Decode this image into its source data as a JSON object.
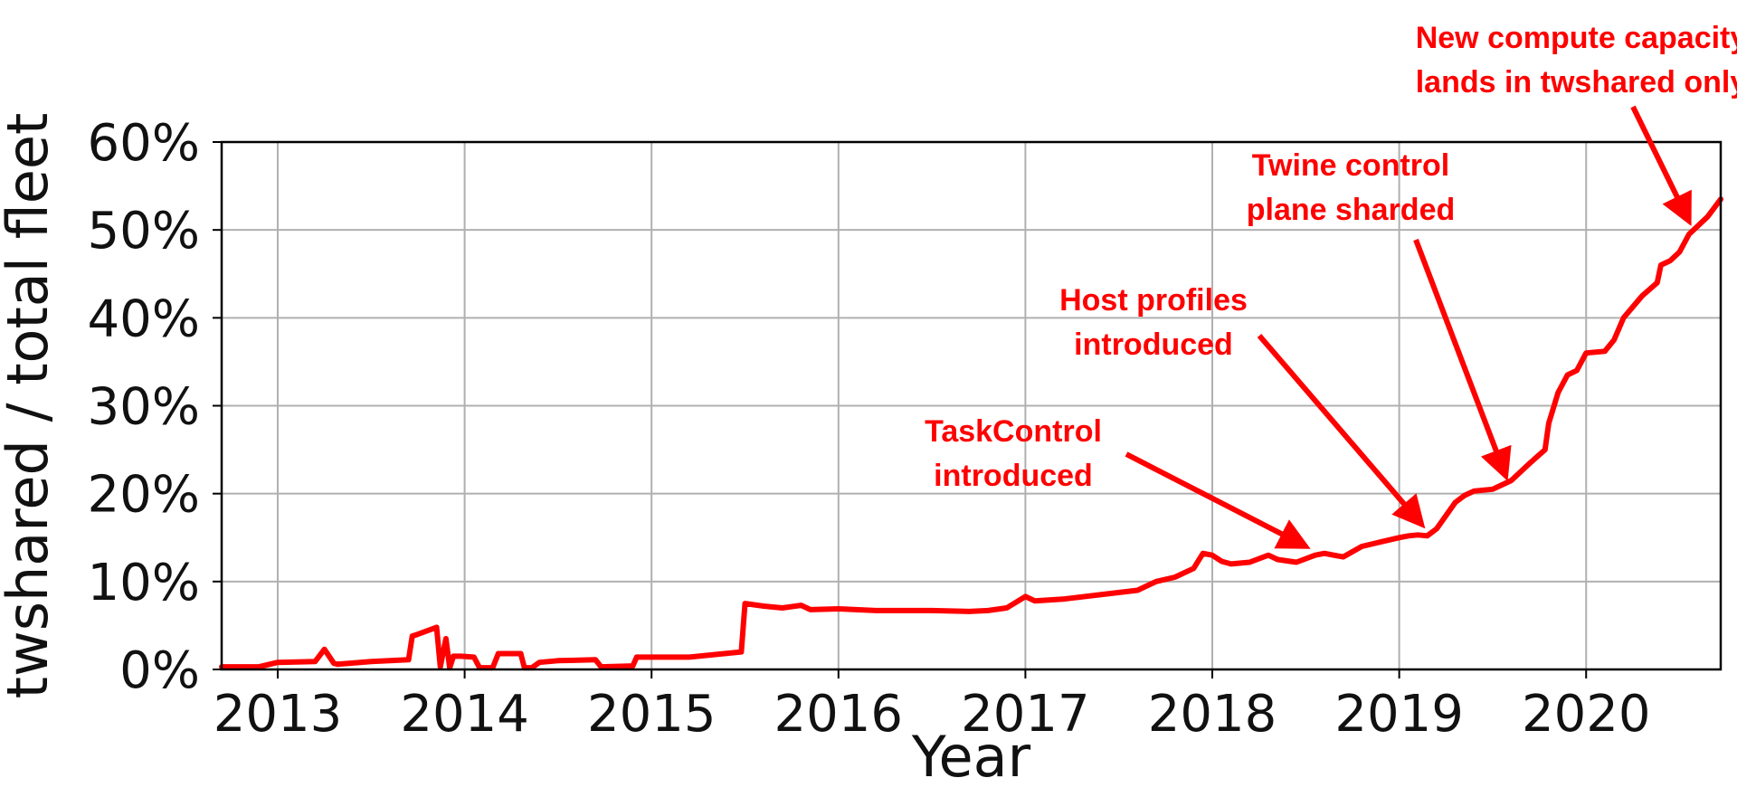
{
  "chart_data": {
    "type": "line",
    "title": "",
    "xlabel": "Year",
    "ylabel": "twshared / total fleet",
    "xlim": [
      2012.7,
      2020.72
    ],
    "ylim": [
      0,
      60
    ],
    "grid": true,
    "x_ticks": [
      2013,
      2014,
      2015,
      2016,
      2017,
      2018,
      2019,
      2020
    ],
    "x_tick_labels": [
      "2013",
      "2014",
      "2015",
      "2016",
      "2017",
      "2018",
      "2019",
      "2020"
    ],
    "y_ticks": [
      0,
      10,
      20,
      30,
      40,
      50,
      60
    ],
    "y_tick_labels": [
      "0%",
      "10%",
      "20%",
      "30%",
      "40%",
      "50%",
      "60%"
    ],
    "line_color": "#ff0000",
    "annotation_color": "#ff0000",
    "series": [
      {
        "x": [
          2012.7,
          2012.9,
          2013.0,
          2013.2,
          2013.25,
          2013.3,
          2013.32,
          2013.5,
          2013.7,
          2013.72,
          2013.75,
          2013.85,
          2013.87,
          2013.9,
          2013.92,
          2013.94,
          2013.98,
          2014.05,
          2014.08,
          2014.15,
          2014.18,
          2014.3,
          2014.32,
          2014.36,
          2014.4,
          2014.5,
          2014.7,
          2014.73,
          2014.9,
          2014.92,
          2015.2,
          2015.48,
          2015.5,
          2015.6,
          2015.7,
          2015.8,
          2015.85,
          2016.0,
          2016.2,
          2016.5,
          2016.7,
          2016.8,
          2016.9,
          2017.0,
          2017.05,
          2017.2,
          2017.4,
          2017.6,
          2017.7,
          2017.8,
          2017.9,
          2017.95,
          2018.0,
          2018.05,
          2018.1,
          2018.2,
          2018.3,
          2018.35,
          2018.45,
          2018.55,
          2018.6,
          2018.65,
          2018.7,
          2018.8,
          2018.9,
          2019.0,
          2019.05,
          2019.1,
          2019.15,
          2019.2,
          2019.3,
          2019.35,
          2019.4,
          2019.5,
          2019.6,
          2019.7,
          2019.78,
          2019.8,
          2019.85,
          2019.9,
          2019.95,
          2020.0,
          2020.1,
          2020.15,
          2020.2,
          2020.3,
          2020.38,
          2020.4,
          2020.45,
          2020.5,
          2020.55,
          2020.6,
          2020.65,
          2020.72
        ],
        "values": [
          0.3,
          0.3,
          0.8,
          0.9,
          2.3,
          0.7,
          0.6,
          0.9,
          1.1,
          3.8,
          4.0,
          4.8,
          0.3,
          3.5,
          0.2,
          1.5,
          1.5,
          1.4,
          0.2,
          0.2,
          1.8,
          1.8,
          0.2,
          0.2,
          0.8,
          1.0,
          1.1,
          0.3,
          0.4,
          1.4,
          1.4,
          2.0,
          7.5,
          7.2,
          7.0,
          7.3,
          6.8,
          6.9,
          6.7,
          6.7,
          6.6,
          6.7,
          7.0,
          8.3,
          7.8,
          8.0,
          8.5,
          9.0,
          10.0,
          10.5,
          11.5,
          13.2,
          13.0,
          12.3,
          12.0,
          12.2,
          13.0,
          12.5,
          12.2,
          13.0,
          13.2,
          13.0,
          12.8,
          14.0,
          14.5,
          15.0,
          15.2,
          15.3,
          15.2,
          16.0,
          19.0,
          19.8,
          20.3,
          20.5,
          21.5,
          23.5,
          25.0,
          28.0,
          31.5,
          33.5,
          34.0,
          36.0,
          36.2,
          37.5,
          40.0,
          42.5,
          44.0,
          46.0,
          46.5,
          47.5,
          49.5,
          50.5,
          51.5,
          53.5
        ]
      }
    ],
    "annotations": [
      {
        "lines": [
          "TaskControl",
          "introduced"
        ],
        "target_x": 2018.5,
        "target_y": 14.0
      },
      {
        "lines": [
          "Host profiles",
          "introduced"
        ],
        "target_x": 2019.12,
        "target_y": 16.5
      },
      {
        "lines": [
          "Twine control",
          "plane sharded"
        ],
        "target_x": 2019.57,
        "target_y": 22.0
      },
      {
        "lines": [
          "New compute capacity",
          "lands in twshared only"
        ],
        "target_x": 2020.55,
        "target_y": 51.0
      }
    ]
  }
}
